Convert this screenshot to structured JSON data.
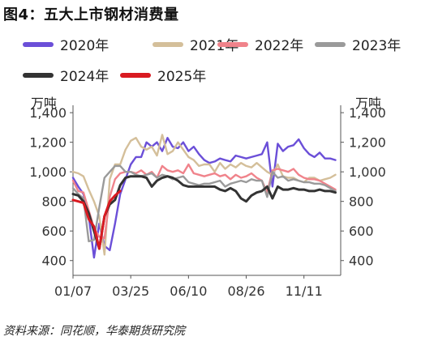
{
  "title": "图4：五大上市钢材消费量",
  "source": "资料来源：同花顺，华泰期货研究院",
  "chart_data": {
    "type": "line",
    "left_axis_unit": "万吨",
    "right_axis_unit": "万吨",
    "ylim": [
      300,
      1450
    ],
    "yticks": [
      "400",
      "600",
      "800",
      "1,000",
      "1,200",
      "1,400"
    ],
    "ytick_values": [
      400,
      600,
      800,
      1000,
      1200,
      1400
    ],
    "xlim": [
      1,
      52
    ],
    "xticks": [
      "01/07",
      "03/25",
      "06/10",
      "08/26",
      "11/11"
    ],
    "xtick_weeks": [
      1,
      12,
      23,
      34,
      45
    ],
    "grid": false,
    "legend_position": "top",
    "series": [
      {
        "name": "2020年",
        "color": "#6b4fd8",
        "x": [
          1,
          2,
          3,
          4,
          5,
          6,
          7,
          8,
          9,
          10,
          11,
          12,
          13,
          14,
          15,
          16,
          17,
          18,
          19,
          20,
          21,
          22,
          23,
          24,
          25,
          26,
          27,
          28,
          29,
          30,
          31,
          32,
          33,
          34,
          35,
          36,
          37,
          38,
          39,
          40,
          41,
          42,
          43,
          44,
          45,
          46,
          47,
          48,
          49,
          50,
          51
        ],
        "values": [
          960,
          900,
          850,
          700,
          420,
          650,
          500,
          470,
          650,
          850,
          950,
          1050,
          1100,
          1100,
          1200,
          1170,
          1200,
          1140,
          1230,
          1170,
          1160,
          1200,
          1140,
          1170,
          1120,
          1080,
          1060,
          1070,
          1090,
          1080,
          1070,
          1110,
          1100,
          1090,
          1100,
          1110,
          1120,
          1200,
          900,
          1190,
          1140,
          1170,
          1180,
          1220,
          1160,
          1120,
          1100,
          1130,
          1090,
          1090,
          1080
        ]
      },
      {
        "name": "2021年",
        "color": "#d4bf9a",
        "x": [
          1,
          2,
          3,
          4,
          5,
          6,
          7,
          8,
          9,
          10,
          11,
          12,
          13,
          14,
          15,
          16,
          17,
          18,
          19,
          20,
          21,
          22,
          23,
          24,
          25,
          26,
          27,
          28,
          29,
          30,
          31,
          32,
          33,
          34,
          35,
          36,
          37,
          38,
          39,
          40,
          41,
          42,
          43,
          44,
          45,
          46,
          47,
          48,
          49,
          50,
          51
        ],
        "values": [
          1000,
          990,
          970,
          880,
          800,
          700,
          440,
          950,
          1050,
          1050,
          1150,
          1210,
          1230,
          1170,
          1150,
          1170,
          1110,
          1250,
          1120,
          1140,
          1200,
          1150,
          1100,
          1080,
          1040,
          1050,
          1050,
          1000,
          1060,
          1020,
          1050,
          1030,
          1060,
          1040,
          1030,
          1060,
          1030,
          1000,
          980,
          1050,
          970,
          960,
          960,
          940,
          930,
          960,
          960,
          940,
          950,
          960,
          980
        ]
      },
      {
        "name": "2022年",
        "color": "#f0838b",
        "x": [
          1,
          2,
          3,
          4,
          5,
          6,
          7,
          8,
          9,
          10,
          11,
          12,
          13,
          14,
          15,
          16,
          17,
          18,
          19,
          20,
          21,
          22,
          23,
          24,
          25,
          26,
          27,
          28,
          29,
          30,
          31,
          32,
          33,
          34,
          35,
          36,
          37,
          38,
          39,
          40,
          41,
          42,
          43,
          44,
          45,
          46,
          47,
          48,
          49,
          50,
          51
        ],
        "values": [
          940,
          870,
          860,
          740,
          620,
          560,
          550,
          830,
          950,
          990,
          1000,
          1000,
          990,
          1010,
          980,
          1000,
          960,
          1040,
          1010,
          1000,
          1010,
          990,
          1050,
          990,
          980,
          970,
          980,
          990,
          970,
          980,
          950,
          980,
          960,
          970,
          990,
          960,
          940,
          860,
          1010,
          1020,
          1010,
          1000,
          1020,
          980,
          960,
          950,
          950,
          940,
          920,
          900,
          880
        ]
      },
      {
        "name": "2023年",
        "color": "#9a9a9a",
        "x": [
          1,
          2,
          3,
          4,
          5,
          6,
          7,
          8,
          9,
          10,
          11,
          12,
          13,
          14,
          15,
          16,
          17,
          18,
          19,
          20,
          21,
          22,
          23,
          24,
          25,
          26,
          27,
          28,
          29,
          30,
          31,
          32,
          33,
          34,
          35,
          36,
          37,
          38,
          39,
          40,
          41,
          42,
          43,
          44,
          45,
          46,
          47,
          48,
          49,
          50,
          51
        ],
        "values": [
          890,
          850,
          820,
          530,
          540,
          760,
          960,
          1000,
          1040,
          1040,
          1000,
          1000,
          980,
          970,
          980,
          990,
          960,
          980,
          970,
          950,
          960,
          970,
          930,
          920,
          910,
          920,
          920,
          930,
          940,
          900,
          920,
          930,
          940,
          930,
          950,
          940,
          940,
          830,
          1000,
          960,
          970,
          940,
          950,
          940,
          930,
          930,
          920,
          920,
          910,
          890,
          870
        ]
      },
      {
        "name": "2024年",
        "color": "#333333",
        "x": [
          1,
          2,
          3,
          4,
          5,
          6,
          7,
          8,
          9,
          10,
          11,
          12,
          13,
          14,
          15,
          16,
          17,
          18,
          19,
          20,
          21,
          22,
          23,
          24,
          25,
          26,
          27,
          28,
          29,
          30,
          31,
          32,
          33,
          34,
          35,
          36,
          37,
          38,
          39,
          40,
          41,
          42,
          43,
          44,
          45,
          46,
          47,
          48,
          49,
          50,
          51
        ],
        "values": [
          850,
          840,
          800,
          720,
          600,
          480,
          700,
          780,
          810,
          910,
          960,
          970,
          970,
          970,
          960,
          900,
          940,
          960,
          970,
          960,
          940,
          910,
          900,
          900,
          900,
          900,
          900,
          900,
          880,
          870,
          890,
          870,
          820,
          800,
          840,
          860,
          870,
          900,
          820,
          900,
          880,
          880,
          890,
          880,
          880,
          870,
          870,
          880,
          870,
          870,
          860
        ]
      },
      {
        "name": "2025年",
        "color": "#d91a21",
        "x": [
          1,
          2,
          3,
          4,
          5,
          6,
          7,
          8,
          9,
          10
        ],
        "values": [
          810,
          800,
          790,
          680,
          630,
          480,
          700,
          800,
          840,
          870
        ]
      }
    ]
  }
}
